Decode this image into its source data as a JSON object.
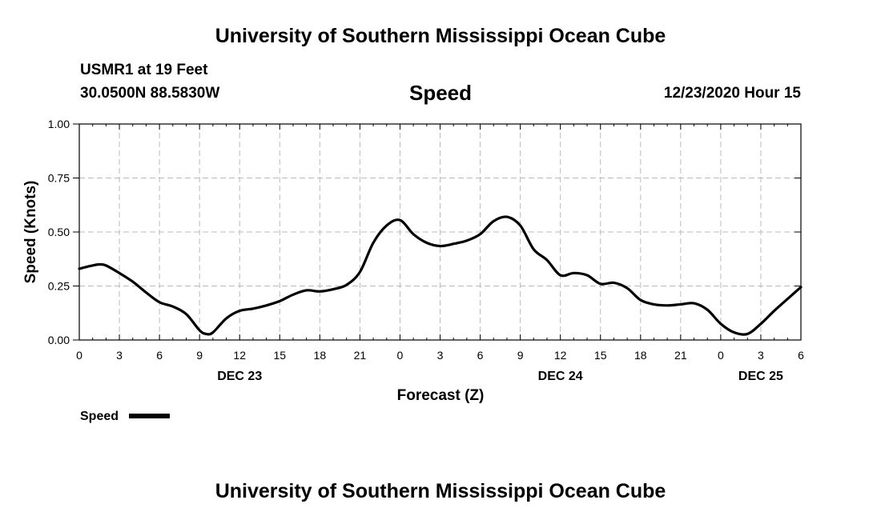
{
  "header": {
    "title": "University of Southern Mississippi Ocean Cube",
    "station": "USMR1 at 19 Feet",
    "coords": "30.0500N 88.5830W",
    "chart_heading": "Speed",
    "timestamp": "12/23/2020 Hour 15"
  },
  "footer": {
    "title": "University of Southern Mississippi Ocean Cube"
  },
  "chart_data": {
    "type": "line",
    "title": "Speed",
    "xlabel": "Forecast (Z)",
    "ylabel": "Speed (Knots)",
    "xlim": [
      0,
      54
    ],
    "ylim": [
      0,
      1
    ],
    "grid": true,
    "x_ticks": [
      0,
      3,
      6,
      9,
      12,
      15,
      18,
      21,
      24,
      27,
      30,
      33,
      36,
      39,
      42,
      45,
      48,
      51,
      54
    ],
    "x_tick_labels": [
      "0",
      "3",
      "6",
      "9",
      "12",
      "15",
      "18",
      "21",
      "0",
      "3",
      "6",
      "9",
      "12",
      "15",
      "18",
      "21",
      "0",
      "3",
      "6"
    ],
    "y_ticks": [
      0,
      0.25,
      0.5,
      0.75,
      1.0
    ],
    "y_tick_labels": [
      "0.00",
      "0.25",
      "0.50",
      "0.75",
      "1.00"
    ],
    "date_labels": [
      {
        "text": "DEC 23",
        "x": 12
      },
      {
        "text": "DEC 24",
        "x": 36
      },
      {
        "text": "DEC 25",
        "x": 51
      }
    ],
    "legend": {
      "label": "Speed",
      "position": "bottom-left"
    },
    "series": [
      {
        "name": "Speed",
        "color": "#000000",
        "x": [
          0,
          1,
          1.5,
          2,
          3,
          4,
          5,
          6,
          7,
          8,
          9,
          9.5,
          10,
          11,
          12,
          13,
          14,
          15,
          16,
          17,
          18,
          19,
          20,
          21,
          22,
          23,
          24,
          25,
          26,
          27,
          28,
          29,
          30,
          31,
          32,
          33,
          34,
          35,
          36,
          37,
          38,
          39,
          40,
          41,
          42,
          43,
          44,
          45,
          46,
          47,
          48,
          49,
          50,
          51,
          52,
          53,
          54
        ],
        "values": [
          0.33,
          0.345,
          0.35,
          0.345,
          0.31,
          0.27,
          0.22,
          0.175,
          0.155,
          0.12,
          0.045,
          0.028,
          0.035,
          0.1,
          0.135,
          0.145,
          0.16,
          0.18,
          0.21,
          0.23,
          0.225,
          0.235,
          0.255,
          0.315,
          0.45,
          0.53,
          0.555,
          0.49,
          0.45,
          0.435,
          0.445,
          0.46,
          0.49,
          0.55,
          0.57,
          0.53,
          0.42,
          0.37,
          0.3,
          0.31,
          0.3,
          0.26,
          0.265,
          0.24,
          0.185,
          0.165,
          0.16,
          0.165,
          0.17,
          0.14,
          0.075,
          0.035,
          0.028,
          0.075,
          0.135,
          0.19,
          0.245
        ]
      }
    ]
  }
}
